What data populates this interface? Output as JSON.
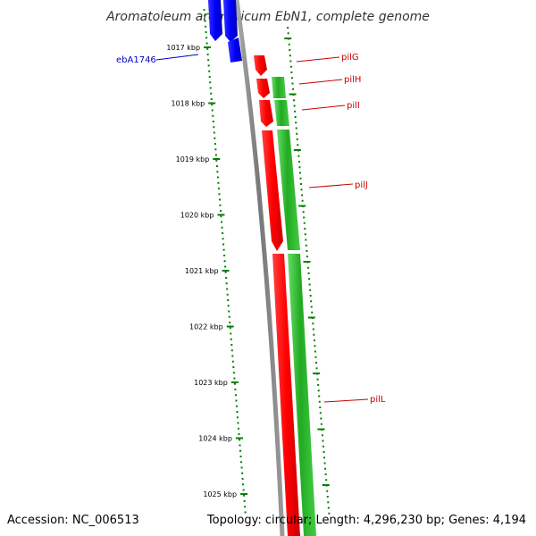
{
  "title": "Aromatoleum aromaticum EbN1, complete genome",
  "footer": {
    "accession": "Accession: NC_006513",
    "topology": "Topology: circular; Length: 4,296,230 bp; Genes: 4,194"
  },
  "colors": {
    "backbone": "#808080",
    "reverse_strand": "#0000ff",
    "forward_cds": "#ff0000",
    "forward_feature": "#33cc33",
    "ticks": "#008000",
    "label_forward": "#cc0000",
    "label_reverse": "#0000cc"
  },
  "ticks": [
    {
      "label": "1017 kbp"
    },
    {
      "label": "1018 kbp"
    },
    {
      "label": "1019 kbp"
    },
    {
      "label": "1020 kbp"
    },
    {
      "label": "1021 kbp"
    },
    {
      "label": "1022 kbp"
    },
    {
      "label": "1023 kbp"
    },
    {
      "label": "1024 kbp"
    },
    {
      "label": "1025 kbp"
    }
  ],
  "gene_labels": [
    {
      "name": "pilG",
      "strand": "forward"
    },
    {
      "name": "pilH",
      "strand": "forward"
    },
    {
      "name": "pilI",
      "strand": "forward"
    },
    {
      "name": "pilJ",
      "strand": "forward"
    },
    {
      "name": "pilL",
      "strand": "forward"
    },
    {
      "name": "ebA1746",
      "strand": "reverse"
    }
  ]
}
